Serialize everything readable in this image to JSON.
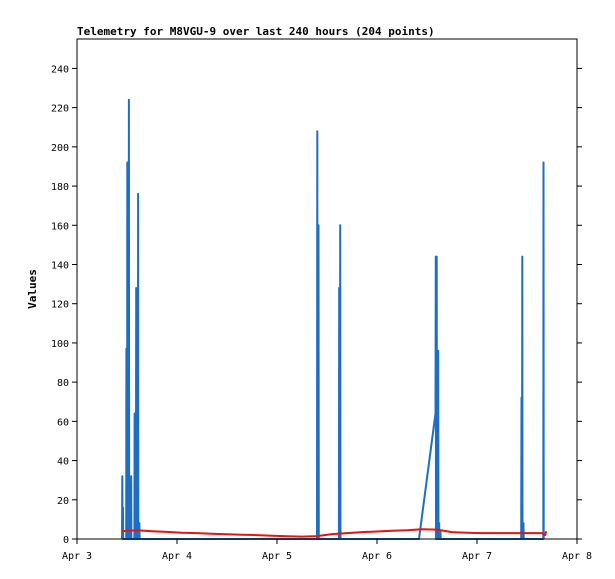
{
  "chart_data": {
    "type": "line",
    "title": "Telemetry for M8VGU-9 over last 240 hours (204 points)",
    "xlabel": "",
    "ylabel": "Values",
    "x_ticks": [
      "Apr 3",
      "Apr 4",
      "Apr 5",
      "Apr 6",
      "Apr 7",
      "Apr 8"
    ],
    "xlim": [
      "2024-04-03T00:00",
      "2024-04-08T00:00"
    ],
    "y_ticks": [
      0,
      20,
      40,
      60,
      80,
      100,
      120,
      140,
      160,
      180,
      200,
      220,
      240
    ],
    "ylim": [
      0,
      255
    ],
    "grid": false,
    "colors": {
      "main": "#1f6fc0",
      "trend": "#e8130f",
      "baseline": "#000000"
    },
    "series": [
      {
        "values_x": [
          "2024-04-03T10:48",
          "2024-04-03T10:52",
          "2024-04-03T10:56",
          "2024-04-03T11:00",
          "2024-04-03T11:02",
          "2024-04-03T11:05",
          "2024-04-03T11:49",
          "2024-04-03T11:52",
          "2024-04-03T11:55",
          "2024-04-03T12:02",
          "2024-04-03T12:05",
          "2024-04-03T12:08",
          "2024-04-03T12:23",
          "2024-04-03T12:27",
          "2024-04-03T12:31",
          "2024-04-03T12:57",
          "2024-04-03T13:00",
          "2024-04-03T13:03",
          "2024-04-03T13:46",
          "2024-04-03T13:50",
          "2024-04-03T13:54",
          "2024-04-03T14:08",
          "2024-04-03T14:12",
          "2024-04-03T14:15",
          "2024-04-03T14:36",
          "2024-04-03T14:40",
          "2024-04-03T14:43",
          "2024-04-03T14:55",
          "2024-04-03T14:59",
          "2024-04-03T15:02",
          "2024-04-05T09:36",
          "2024-04-05T09:40",
          "2024-04-05T09:44",
          "2024-04-05T09:55",
          "2024-04-05T09:58",
          "2024-04-05T10:02",
          "2024-04-05T14:52",
          "2024-04-05T14:55",
          "2024-04-05T14:59",
          "2024-04-05T15:06",
          "2024-04-05T15:10",
          "2024-04-05T15:14",
          "2024-04-06T10:05",
          "2024-04-06T14:02",
          "2024-04-06T14:06",
          "2024-04-06T14:10",
          "2024-04-06T14:17",
          "2024-04-06T14:20",
          "2024-04-06T14:24",
          "2024-04-06T14:38",
          "2024-04-06T14:41",
          "2024-04-06T14:45",
          "2024-04-06T14:52",
          "2024-04-06T14:56",
          "2024-04-06T14:59",
          "2024-04-06T15:10",
          "2024-04-06T15:13",
          "2024-04-06T15:17",
          "2024-04-07T10:37",
          "2024-04-07T10:41",
          "2024-04-07T10:44",
          "2024-04-07T10:48",
          "2024-04-07T10:52",
          "2024-04-07T10:55",
          "2024-04-07T11:06",
          "2024-04-07T11:10",
          "2024-04-07T11:13",
          "2024-04-07T15:54",
          "2024-04-07T15:58",
          "2024-04-07T16:01"
        ],
        "values_y": [
          0,
          32,
          0,
          0,
          16,
          0,
          0,
          97,
          0,
          0,
          192,
          0,
          0,
          224,
          0,
          0,
          32,
          0,
          0,
          64,
          0,
          0,
          128,
          0,
          0,
          176,
          0,
          0,
          8,
          0,
          0,
          208,
          0,
          0,
          160,
          0,
          0,
          128,
          0,
          0,
          160,
          0,
          0,
          64,
          144,
          0,
          0,
          144,
          0,
          0,
          96,
          0,
          0,
          8,
          0,
          0,
          4,
          0,
          0,
          72,
          0,
          0,
          144,
          0,
          0,
          8,
          0,
          0,
          192,
          0
        ]
      },
      {
        "values_x": [
          "2024-04-03T10:48",
          "2024-04-03T14:24",
          "2024-04-03T18:00",
          "2024-04-03T21:36",
          "2024-04-04T01:12",
          "2024-04-04T04:48",
          "2024-04-04T08:24",
          "2024-04-04T12:00",
          "2024-04-04T15:36",
          "2024-04-04T19:12",
          "2024-04-04T22:48",
          "2024-04-05T02:24",
          "2024-04-05T06:00",
          "2024-04-05T09:36",
          "2024-04-05T13:12",
          "2024-04-05T16:48",
          "2024-04-05T20:24",
          "2024-04-06T00:00",
          "2024-04-06T03:36",
          "2024-04-06T07:12",
          "2024-04-06T10:48",
          "2024-04-06T14:24",
          "2024-04-06T18:00",
          "2024-04-06T21:36",
          "2024-04-07T01:12",
          "2024-04-07T04:48",
          "2024-04-07T08:24",
          "2024-04-07T12:00",
          "2024-04-07T15:36",
          "2024-04-07T16:22",
          "2024-04-07T16:36"
        ],
        "values_y": [
          4,
          4.5,
          4,
          3.6,
          3.2,
          3.0,
          2.7,
          2.4,
          2.2,
          2.0,
          1.7,
          1.4,
          1.2,
          1.5,
          2.5,
          3.0,
          3.5,
          3.8,
          4.2,
          4.5,
          5.0,
          4.8,
          3.5,
          3.2,
          3.0,
          3.0,
          3.0,
          3.0,
          3.0,
          2.0,
          4.0
        ]
      },
      {
        "values_x": [
          "2024-04-03T10:48",
          "2024-04-07T16:36"
        ],
        "values_y": [
          0,
          0
        ]
      }
    ]
  }
}
